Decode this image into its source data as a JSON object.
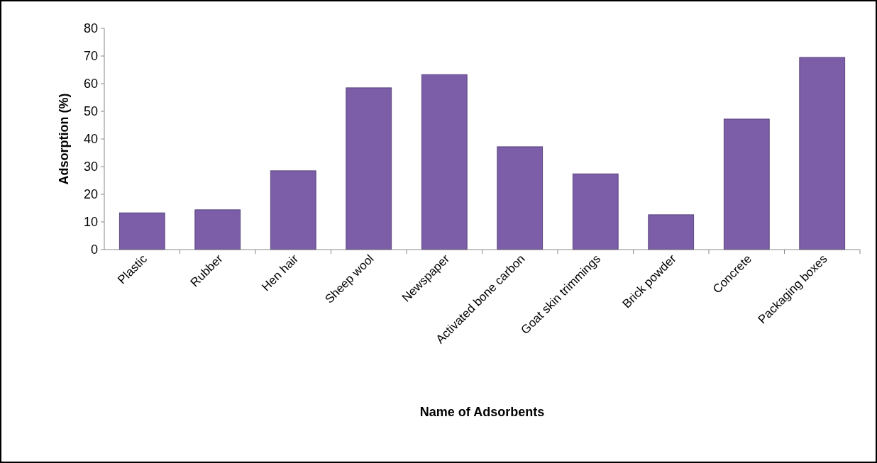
{
  "chart_data": {
    "type": "bar",
    "xlabel": "Name of Adsorbents",
    "ylabel": "Adsorption (%)",
    "categories": [
      "Plastic",
      "Rubber",
      "Hen hair",
      "Sheep wool",
      "Newspaper",
      "Activated bone carbon",
      "Goat skin trimmings",
      "Brick powder",
      "Concrete",
      "Packaging  boxes"
    ],
    "values": [
      13.3,
      14.4,
      28.5,
      58.5,
      63.3,
      37.2,
      27.4,
      12.6,
      47.2,
      69.5
    ],
    "color": "#7b5ea7",
    "ylim": [
      0,
      80
    ],
    "yticks": [
      0,
      10,
      20,
      30,
      40,
      50,
      60,
      70,
      80
    ],
    "grid": false
  }
}
